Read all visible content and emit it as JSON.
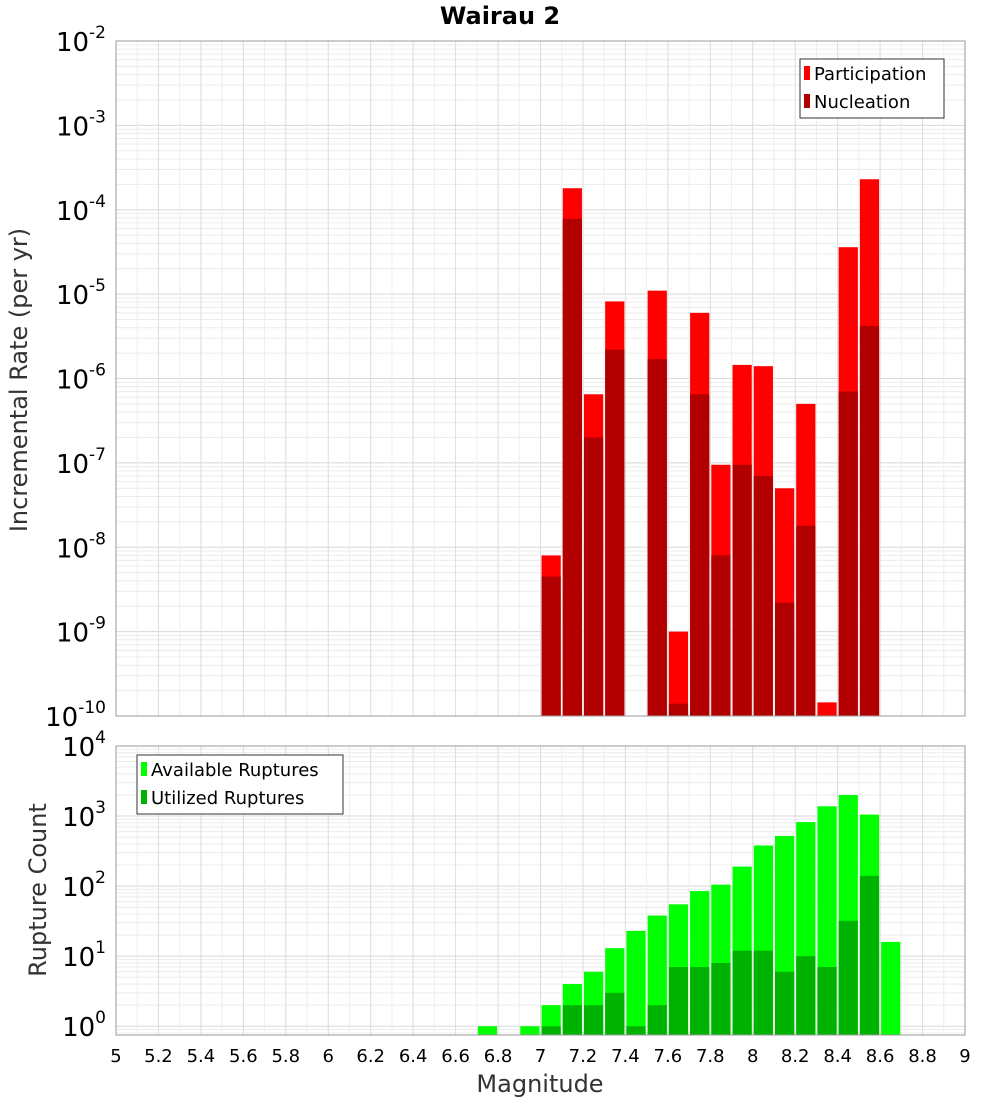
{
  "chart_data": [
    {
      "type": "bar",
      "title": "Wairau 2",
      "xlabel": "",
      "ylabel": "Incremental Rate (per yr)",
      "yscale": "log",
      "ylim": [
        1e-10,
        0.01
      ],
      "xlim": [
        5,
        9
      ],
      "grid": true,
      "legend_position": "top-right",
      "ytick_labels": [
        "10^-10",
        "10^-9",
        "10^-8",
        "10^-7",
        "10^-6",
        "10^-5",
        "10^-4",
        "10^-3",
        "10^-2"
      ],
      "x": [
        7.05,
        7.15,
        7.25,
        7.35,
        7.45,
        7.55,
        7.65,
        7.75,
        7.85,
        7.95,
        8.05,
        8.15,
        8.25,
        8.35,
        8.45,
        8.55
      ],
      "series": [
        {
          "name": "Participation",
          "color": "#ff0000",
          "values": [
            8e-09,
            0.00018,
            6.5e-07,
            8.2e-06,
            null,
            1.1e-05,
            1e-09,
            6e-06,
            9.5e-08,
            1.45e-06,
            1.4e-06,
            5e-08,
            5e-07,
            1.45e-10,
            3.6e-05,
            0.00023
          ]
        },
        {
          "name": "Nucleation",
          "color": "#b20000",
          "values": [
            4.5e-09,
            7.8e-05,
            2e-07,
            2.2e-06,
            null,
            1.7e-06,
            1.4e-10,
            6.5e-07,
            8e-09,
            9.5e-08,
            7e-08,
            2.2e-09,
            1.8e-08,
            null,
            7e-07,
            4.2e-06
          ]
        }
      ]
    },
    {
      "type": "bar",
      "title": "",
      "xlabel": "Magnitude",
      "ylabel": "Rupture Count",
      "yscale": "log",
      "ylim": [
        0.75,
        10000
      ],
      "xlim": [
        5,
        9
      ],
      "grid": true,
      "legend_position": "top-left",
      "ytick_labels": [
        "10^0",
        "10^1",
        "10^2",
        "10^3",
        "10^4"
      ],
      "xticks": [
        "5",
        "5.2",
        "5.4",
        "5.6",
        "5.8",
        "6",
        "6.2",
        "6.4",
        "6.6",
        "6.8",
        "7",
        "7.2",
        "7.4",
        "7.6",
        "7.8",
        "8",
        "8.2",
        "8.4",
        "8.6",
        "8.8",
        "9"
      ],
      "x": [
        6.75,
        6.95,
        7.05,
        7.15,
        7.25,
        7.35,
        7.45,
        7.55,
        7.65,
        7.75,
        7.85,
        7.95,
        8.05,
        8.15,
        8.25,
        8.35,
        8.45,
        8.55,
        8.65
      ],
      "series": [
        {
          "name": "Available Ruptures",
          "color": "#00ff00",
          "values": [
            1,
            1,
            2,
            4,
            6,
            13,
            23,
            38,
            55,
            85,
            105,
            190,
            380,
            520,
            820,
            1380,
            2000,
            1050,
            16
          ]
        },
        {
          "name": "Utilized Ruptures",
          "color": "#00b200",
          "values": [
            null,
            null,
            1,
            2,
            2,
            3,
            1,
            2,
            7,
            7,
            8,
            12,
            12,
            6,
            10,
            7,
            32,
            140,
            null
          ]
        }
      ]
    }
  ]
}
